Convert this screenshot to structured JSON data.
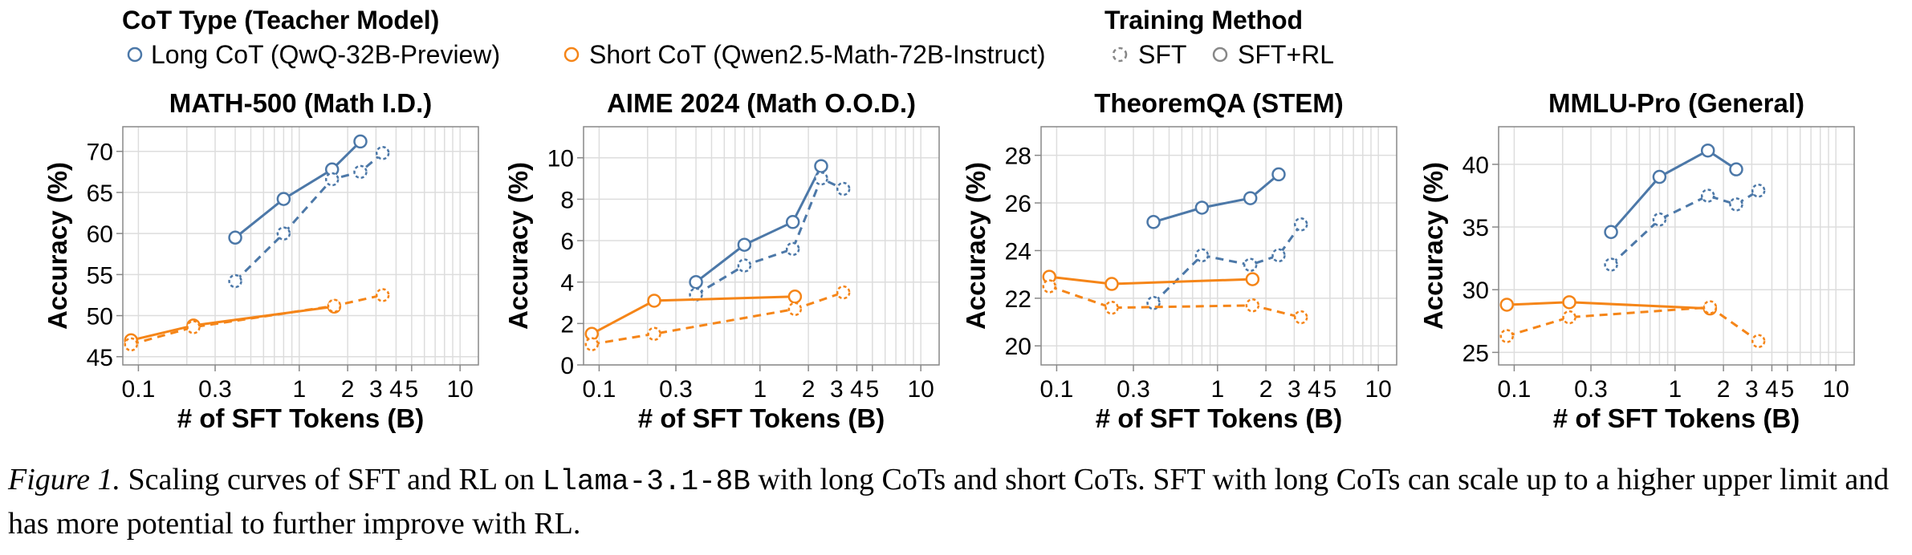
{
  "legend": {
    "cot_title": "CoT Type (Teacher Model)",
    "long_label": "Long CoT (QwQ-32B-Preview)",
    "short_label": "Short CoT (Qwen2.5-Math-72B-Instruct)",
    "method_title": "Training Method",
    "sft_label": "SFT",
    "sftrl_label": "SFT+RL"
  },
  "colors": {
    "long": "#4C78A8",
    "short": "#F58518",
    "grid": "#dddddd",
    "axis": "#888888"
  },
  "chart_data": [
    {
      "type": "line",
      "title": "MATH-500 (Math I.D.)",
      "xlabel": "# of SFT Tokens (B)",
      "ylabel": "Accuracy (%)",
      "xscale": "log",
      "xlim": [
        0.08,
        13
      ],
      "xticks": [
        0.1,
        0.3,
        1,
        2,
        3,
        4,
        5,
        10
      ],
      "xtick_labels": [
        "0.1",
        "0.3",
        "1",
        "2",
        "3",
        "4",
        "5",
        "10"
      ],
      "ylim": [
        44,
        73
      ],
      "yticks": [
        45,
        50,
        55,
        60,
        65,
        70
      ],
      "grid": true,
      "series": [
        {
          "name": "Long CoT SFT+RL",
          "cot": "long",
          "method": "SFT+RL",
          "x": [
            0.4,
            0.8,
            1.6,
            2.4
          ],
          "y": [
            59.5,
            64.2,
            67.8,
            71.2
          ]
        },
        {
          "name": "Long CoT SFT",
          "cot": "long",
          "method": "SFT",
          "x": [
            0.4,
            0.8,
            1.6,
            2.4,
            3.3
          ],
          "y": [
            54.2,
            60.0,
            66.6,
            67.5,
            69.8
          ]
        },
        {
          "name": "Short CoT SFT+RL",
          "cot": "short",
          "method": "SFT+RL",
          "x": [
            0.09,
            0.22,
            1.65
          ],
          "y": [
            47.0,
            48.8,
            51.1
          ]
        },
        {
          "name": "Short CoT SFT",
          "cot": "short",
          "method": "SFT",
          "x": [
            0.09,
            0.22,
            1.65,
            3.3
          ],
          "y": [
            46.5,
            48.6,
            51.2,
            52.5
          ]
        }
      ]
    },
    {
      "type": "line",
      "title": "AIME 2024 (Math O.O.D.)",
      "xlabel": "# of SFT Tokens (B)",
      "ylabel": "Accuracy (%)",
      "xscale": "log",
      "xlim": [
        0.08,
        13
      ],
      "xticks": [
        0.1,
        0.3,
        1,
        2,
        3,
        4,
        5,
        10
      ],
      "xtick_labels": [
        "0.1",
        "0.3",
        "1",
        "2",
        "3",
        "4",
        "5",
        "10"
      ],
      "ylim": [
        0,
        11.5
      ],
      "yticks": [
        0,
        2,
        4,
        6,
        8,
        10
      ],
      "grid": true,
      "series": [
        {
          "name": "Long CoT SFT+RL",
          "cot": "long",
          "method": "SFT+RL",
          "x": [
            0.4,
            0.8,
            1.6,
            2.4
          ],
          "y": [
            4.0,
            5.8,
            6.9,
            9.6
          ]
        },
        {
          "name": "Long CoT SFT",
          "cot": "long",
          "method": "SFT",
          "x": [
            0.4,
            0.8,
            1.6,
            2.4,
            3.3
          ],
          "y": [
            3.4,
            4.8,
            5.6,
            9.0,
            8.5
          ]
        },
        {
          "name": "Short CoT SFT+RL",
          "cot": "short",
          "method": "SFT+RL",
          "x": [
            0.09,
            0.22,
            1.65
          ],
          "y": [
            1.5,
            3.1,
            3.3
          ]
        },
        {
          "name": "Short CoT SFT",
          "cot": "short",
          "method": "SFT",
          "x": [
            0.09,
            0.22,
            1.65,
            3.3
          ],
          "y": [
            1.0,
            1.5,
            2.7,
            3.5
          ]
        }
      ]
    },
    {
      "type": "line",
      "title": "TheoremQA (STEM)",
      "xlabel": "# of SFT Tokens (B)",
      "ylabel": "Accuracy (%)",
      "xscale": "log",
      "xlim": [
        0.08,
        13
      ],
      "xticks": [
        0.1,
        0.3,
        1,
        2,
        3,
        4,
        5,
        10
      ],
      "xtick_labels": [
        "0.1",
        "0.3",
        "1",
        "2",
        "3",
        "4",
        "5",
        "10"
      ],
      "ylim": [
        19.2,
        29.2
      ],
      "yticks": [
        20,
        22,
        24,
        26,
        28
      ],
      "grid": true,
      "series": [
        {
          "name": "Long CoT SFT+RL",
          "cot": "long",
          "method": "SFT+RL",
          "x": [
            0.4,
            0.8,
            1.6,
            2.4
          ],
          "y": [
            25.2,
            25.8,
            26.2,
            27.2
          ]
        },
        {
          "name": "Long CoT SFT",
          "cot": "long",
          "method": "SFT",
          "x": [
            0.4,
            0.8,
            1.6,
            2.4,
            3.3
          ],
          "y": [
            21.8,
            23.8,
            23.4,
            23.8,
            25.1
          ]
        },
        {
          "name": "Short CoT SFT+RL",
          "cot": "short",
          "method": "SFT+RL",
          "x": [
            0.09,
            0.22,
            1.65
          ],
          "y": [
            22.9,
            22.6,
            22.8
          ]
        },
        {
          "name": "Short CoT SFT",
          "cot": "short",
          "method": "SFT",
          "x": [
            0.09,
            0.22,
            1.65,
            3.3
          ],
          "y": [
            22.5,
            21.6,
            21.7,
            21.2
          ]
        }
      ]
    },
    {
      "type": "line",
      "title": "MMLU-Pro (General)",
      "xlabel": "# of SFT Tokens (B)",
      "ylabel": "Accuracy (%)",
      "xscale": "log",
      "xlim": [
        0.08,
        13
      ],
      "xticks": [
        0.1,
        0.3,
        1,
        2,
        3,
        4,
        5,
        10
      ],
      "xtick_labels": [
        "0.1",
        "0.3",
        "1",
        "2",
        "3",
        "4",
        "5",
        "10"
      ],
      "ylim": [
        24,
        43
      ],
      "yticks": [
        25,
        30,
        35,
        40
      ],
      "grid": true,
      "series": [
        {
          "name": "Long CoT SFT+RL",
          "cot": "long",
          "method": "SFT+RL",
          "x": [
            0.4,
            0.8,
            1.6,
            2.4
          ],
          "y": [
            34.6,
            39.0,
            41.1,
            39.6
          ]
        },
        {
          "name": "Long CoT SFT",
          "cot": "long",
          "method": "SFT",
          "x": [
            0.4,
            0.8,
            1.6,
            2.4,
            3.3
          ],
          "y": [
            32.0,
            35.6,
            37.5,
            36.8,
            37.9
          ]
        },
        {
          "name": "Short CoT SFT+RL",
          "cot": "short",
          "method": "SFT+RL",
          "x": [
            0.09,
            0.22,
            1.65
          ],
          "y": [
            28.8,
            29.0,
            28.5
          ]
        },
        {
          "name": "Short CoT SFT",
          "cot": "short",
          "method": "SFT",
          "x": [
            0.09,
            0.22,
            1.65,
            3.3
          ],
          "y": [
            26.3,
            27.8,
            28.6,
            25.9
          ]
        }
      ]
    }
  ],
  "caption": {
    "fig_label": "Figure 1.",
    "text_before": " Scaling curves of SFT and RL on ",
    "model": "Llama-3.1-8B",
    "text_after": " with long CoTs and short CoTs. SFT with long CoTs can scale up to a higher upper limit and has more potential to further improve with RL."
  }
}
